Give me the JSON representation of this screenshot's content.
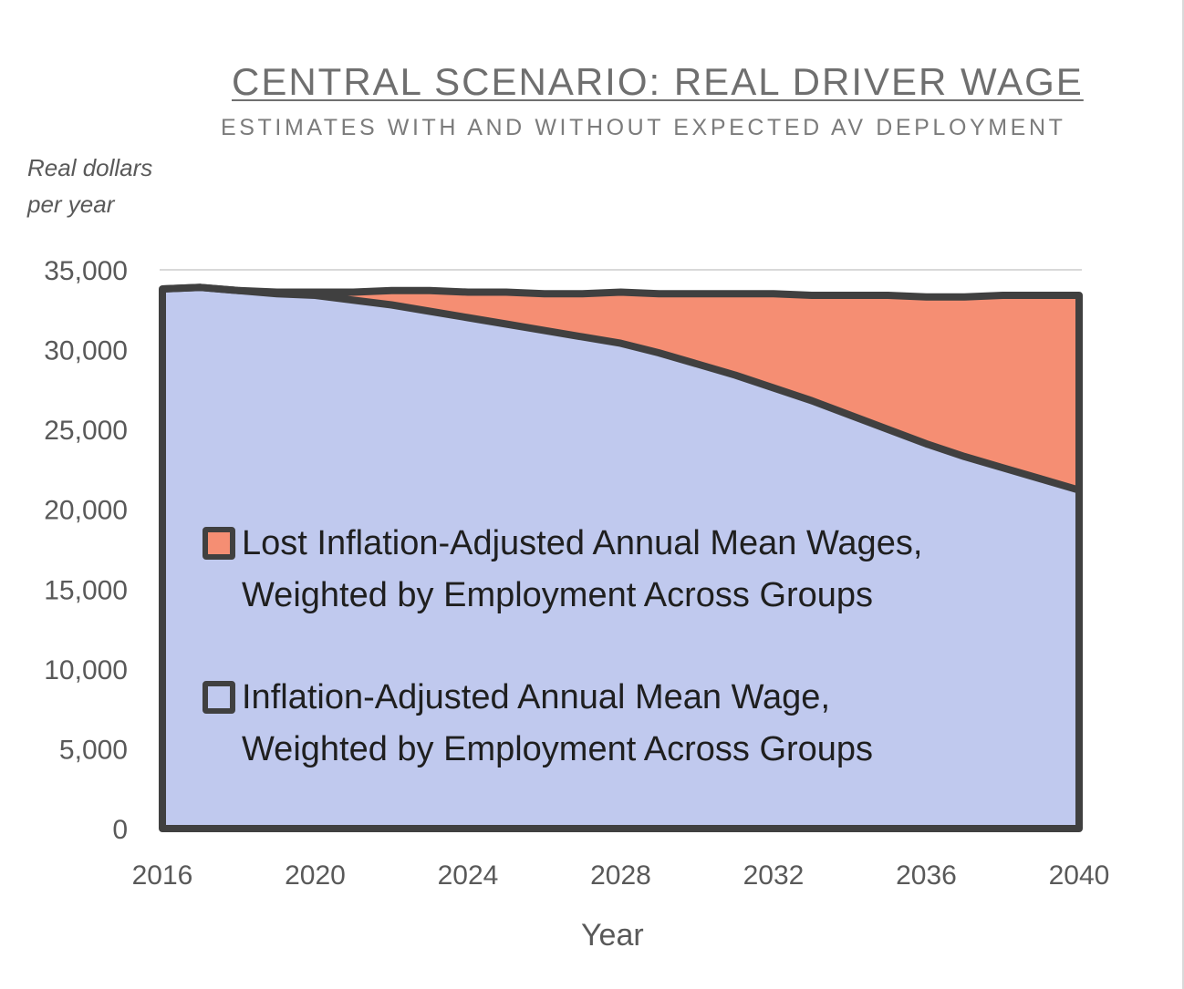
{
  "title": "CENTRAL SCENARIO: REAL DRIVER WAGE",
  "subtitle": "ESTIMATES WITH AND WITHOUT EXPECTED AV DEPLOYMENT",
  "y_unit_lines": [
    "Real dollars",
    "per year"
  ],
  "x_title": "Year",
  "colors": {
    "wage_fill": "#c0c9ee",
    "lost_fill": "#f58e73",
    "outline": "#404040",
    "grid": "#d9d9d9"
  },
  "legend": [
    {
      "lines": [
        "Lost Inflation-Adjusted Annual Mean Wages,",
        "Weighted by Employment Across Groups"
      ],
      "color": "#f58e73"
    },
    {
      "lines": [
        "Inflation-Adjusted Annual Mean Wage,",
        "Weighted by Employment Across Groups"
      ],
      "color": "#c0c9ee"
    }
  ],
  "chart_data": {
    "type": "area",
    "stacked": true,
    "x": [
      2016,
      2017,
      2018,
      2019,
      2020,
      2021,
      2022,
      2023,
      2024,
      2025,
      2026,
      2027,
      2028,
      2029,
      2030,
      2031,
      2032,
      2033,
      2034,
      2035,
      2036,
      2037,
      2038,
      2039,
      2040
    ],
    "x_ticks": [
      "2016",
      "2020",
      "2024",
      "2028",
      "2032",
      "2036",
      "2040"
    ],
    "y_ticks": [
      "0",
      "5,000",
      "10,000",
      "15,000",
      "20,000",
      "25,000",
      "30,000",
      "35,000"
    ],
    "ylim": [
      0,
      35000
    ],
    "xlim": [
      2016,
      2040
    ],
    "series": [
      {
        "name": "Inflation-Adjusted Annual Mean Wage, Weighted by Employment Across Groups",
        "values": [
          33800,
          33900,
          33700,
          33500,
          33400,
          33100,
          32800,
          32400,
          32000,
          31600,
          31200,
          30800,
          30400,
          29800,
          29100,
          28400,
          27600,
          26800,
          25900,
          25000,
          24100,
          23300,
          22600,
          21900,
          21200
        ]
      },
      {
        "name": "Lost Inflation-Adjusted Annual Mean Wages, Weighted by Employment Across Groups",
        "values": [
          0,
          0,
          0,
          100,
          200,
          500,
          900,
          1300,
          1600,
          2000,
          2300,
          2700,
          3200,
          3700,
          4400,
          5100,
          5900,
          6600,
          7500,
          8400,
          9200,
          10000,
          10800,
          11500,
          12200
        ]
      }
    ],
    "grid": true,
    "legend_position": "inside-center-left"
  }
}
